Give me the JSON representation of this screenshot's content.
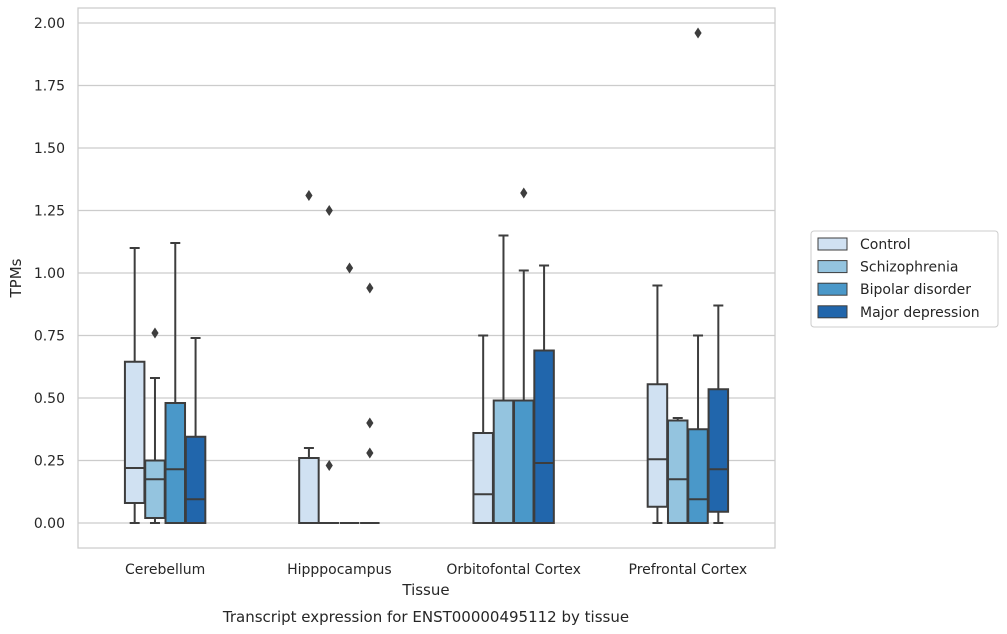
{
  "chart_data": {
    "type": "boxplot",
    "title": "",
    "caption": "Transcript expression for ENST00000495112 by tissue",
    "xlabel": "Tissue",
    "ylabel": "TPMs",
    "ylim": [
      -0.1,
      2.06
    ],
    "yticks": [
      0.0,
      0.25,
      0.5,
      0.75,
      1.0,
      1.25,
      1.5,
      1.75,
      2.0
    ],
    "ytick_labels": [
      "0.00",
      "0.25",
      "0.50",
      "0.75",
      "1.00",
      "1.25",
      "1.50",
      "1.75",
      "2.00"
    ],
    "grid": true,
    "legend_position": "right",
    "categories": [
      "Cerebellum",
      "Hipppocampus",
      "Orbitofontal Cortex",
      "Prefrontal Cortex"
    ],
    "series": [
      {
        "name": "Control",
        "color": "#d0e1f2",
        "boxes": [
          {
            "whisker_low": 0.0,
            "q1": 0.08,
            "median": 0.22,
            "q3": 0.645,
            "whisker_high": 1.1,
            "outliers": []
          },
          {
            "whisker_low": 0.0,
            "q1": 0.0,
            "median": 0.0,
            "q3": 0.26,
            "whisker_high": 0.3,
            "outliers": [
              1.31
            ]
          },
          {
            "whisker_low": 0.0,
            "q1": 0.0,
            "median": 0.115,
            "q3": 0.36,
            "whisker_high": 0.75,
            "outliers": []
          },
          {
            "whisker_low": 0.0,
            "q1": 0.065,
            "median": 0.255,
            "q3": 0.555,
            "whisker_high": 0.95,
            "outliers": []
          }
        ]
      },
      {
        "name": "Schizophrenia",
        "color": "#94c4df",
        "boxes": [
          {
            "whisker_low": 0.0,
            "q1": 0.02,
            "median": 0.175,
            "q3": 0.25,
            "whisker_high": 0.58,
            "outliers": [
              0.76
            ]
          },
          {
            "whisker_low": 0.0,
            "q1": 0.0,
            "median": 0.0,
            "q3": 0.0,
            "whisker_high": 0.0,
            "outliers": [
              0.23,
              1.25
            ]
          },
          {
            "whisker_low": 0.0,
            "q1": 0.0,
            "median": 0.0,
            "q3": 0.49,
            "whisker_high": 1.15,
            "outliers": []
          },
          {
            "whisker_low": 0.0,
            "q1": 0.0,
            "median": 0.175,
            "q3": 0.41,
            "whisker_high": 0.42,
            "outliers": []
          }
        ]
      },
      {
        "name": "Bipolar disorder",
        "color": "#4a98c9",
        "boxes": [
          {
            "whisker_low": 0.0,
            "q1": 0.0,
            "median": 0.215,
            "q3": 0.48,
            "whisker_high": 1.12,
            "outliers": []
          },
          {
            "whisker_low": 0.0,
            "q1": 0.0,
            "median": 0.0,
            "q3": 0.0,
            "whisker_high": 0.0,
            "outliers": [
              1.02
            ]
          },
          {
            "whisker_low": 0.0,
            "q1": 0.0,
            "median": 0.0,
            "q3": 0.49,
            "whisker_high": 1.01,
            "outliers": [
              1.32
            ]
          },
          {
            "whisker_low": 0.0,
            "q1": 0.0,
            "median": 0.095,
            "q3": 0.375,
            "whisker_high": 0.75,
            "outliers": [
              1.96
            ]
          }
        ]
      },
      {
        "name": "Major depression",
        "color": "#2166ac",
        "boxes": [
          {
            "whisker_low": 0.0,
            "q1": 0.0,
            "median": 0.095,
            "q3": 0.345,
            "whisker_high": 0.74,
            "outliers": []
          },
          {
            "whisker_low": 0.0,
            "q1": 0.0,
            "median": 0.0,
            "q3": 0.0,
            "whisker_high": 0.0,
            "outliers": [
              0.28,
              0.4,
              0.94
            ]
          },
          {
            "whisker_low": 0.0,
            "q1": 0.0,
            "median": 0.24,
            "q3": 0.69,
            "whisker_high": 1.03,
            "outliers": []
          },
          {
            "whisker_low": 0.0,
            "q1": 0.045,
            "median": 0.215,
            "q3": 0.535,
            "whisker_high": 0.87,
            "outliers": []
          }
        ]
      }
    ]
  }
}
